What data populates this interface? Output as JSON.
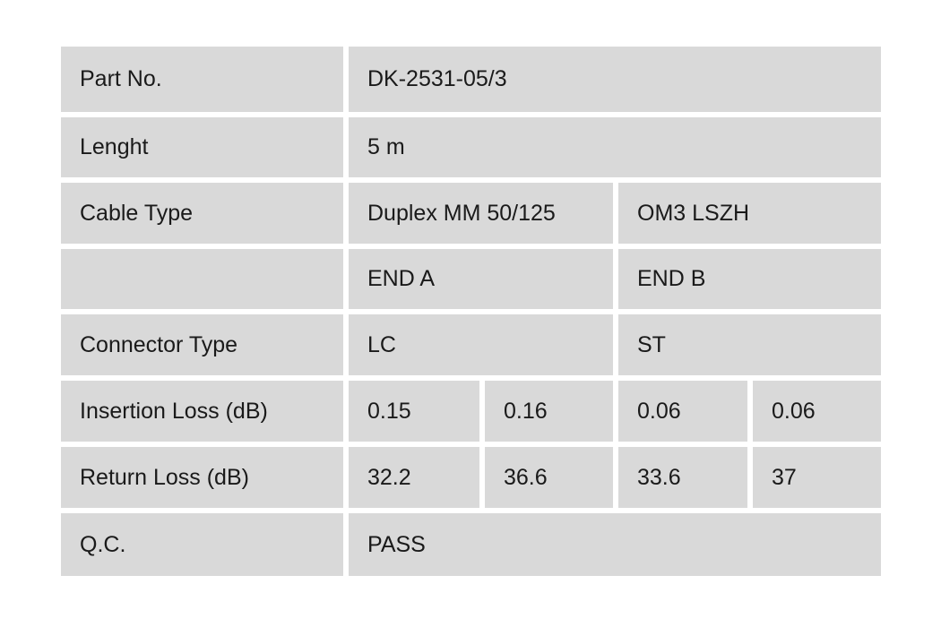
{
  "colors": {
    "cell_bg": "#d9d9d9",
    "page_bg": "#ffffff",
    "text": "#1a1a1a"
  },
  "table": {
    "rows": [
      {
        "label": "Part No.",
        "value": "DK-2531-05/3"
      },
      {
        "label": "Lenght",
        "value": "5 m"
      },
      {
        "label": "Cable Type",
        "end_a": "Duplex MM 50/125",
        "end_b": "OM3 LSZH"
      },
      {
        "label": "",
        "end_a": "END A",
        "end_b": "END B"
      },
      {
        "label": "Connector Type",
        "end_a": "LC",
        "end_b": "ST"
      },
      {
        "label": "Insertion Loss (dB)",
        "a1": "0.15",
        "a2": "0.16",
        "b1": "0.06",
        "b2": "0.06"
      },
      {
        "label": "Return Loss (dB)",
        "a1": "32.2",
        "a2": "36.6",
        "b1": "33.6",
        "b2": "37"
      },
      {
        "label": "Q.C.",
        "value": "PASS"
      }
    ]
  }
}
